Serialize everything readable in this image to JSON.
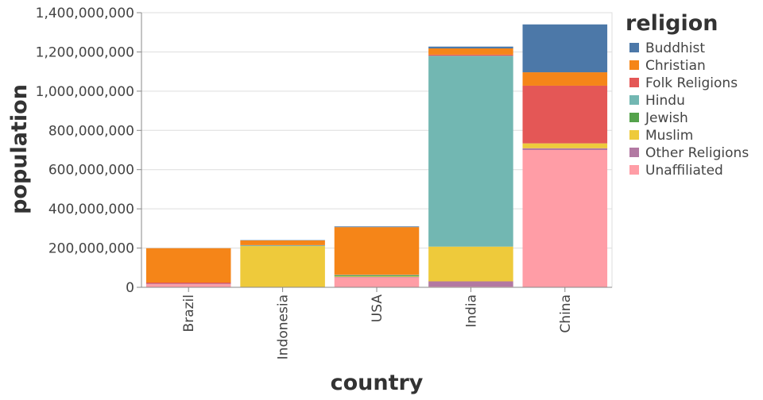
{
  "chart_data": {
    "type": "bar",
    "stacked": true,
    "xlabel": "country",
    "ylabel": "population",
    "ylim": [
      0,
      1400000000
    ],
    "yticks": [
      0,
      200000000,
      400000000,
      600000000,
      800000000,
      1000000000,
      1200000000,
      1400000000
    ],
    "ytick_labels": [
      "0",
      "200,000,000",
      "400,000,000",
      "600,000,000",
      "800,000,000",
      "1,000,000,000",
      "1,200,000,000",
      "1,400,000,000"
    ],
    "grid": true,
    "legend_title": "religion",
    "legend_position": "right",
    "categories": [
      "Brazil",
      "Indonesia",
      "USA",
      "India",
      "China"
    ],
    "stack_order": [
      "Unaffiliated",
      "Other Religions",
      "Muslim",
      "Jewish",
      "Hindu",
      "Folk Religions",
      "Christian",
      "Buddhist"
    ],
    "series": [
      {
        "name": "Buddhist",
        "color": "#4c78a8",
        "values": [
          250000,
          1700000,
          3600000,
          9200000,
          244000000
        ]
      },
      {
        "name": "Christian",
        "color": "#f58518",
        "values": [
          175000000,
          24000000,
          243000000,
          31800000,
          68400000
        ]
      },
      {
        "name": "Folk Religions",
        "color": "#e45756",
        "values": [
          5500000,
          800000,
          600000,
          5800000,
          294000000
        ]
      },
      {
        "name": "Hindu",
        "color": "#72b7b2",
        "values": [
          100000,
          4000000,
          1800000,
          973000000,
          100000
        ]
      },
      {
        "name": "Jewish",
        "color": "#54a24b",
        "values": [
          100000,
          0,
          5700000,
          0,
          0
        ]
      },
      {
        "name": "Muslim",
        "color": "#eeca3b",
        "values": [
          100000,
          209000000,
          2800000,
          177000000,
          24700000
        ]
      },
      {
        "name": "Other Religions",
        "color": "#b279a2",
        "values": [
          3100000,
          1000000,
          1900000,
          27000000,
          9100000
        ]
      },
      {
        "name": "Unaffiliated",
        "color": "#ff9da6",
        "values": [
          15400000,
          100000,
          50980000,
          3400000,
          700000000
        ]
      }
    ]
  }
}
